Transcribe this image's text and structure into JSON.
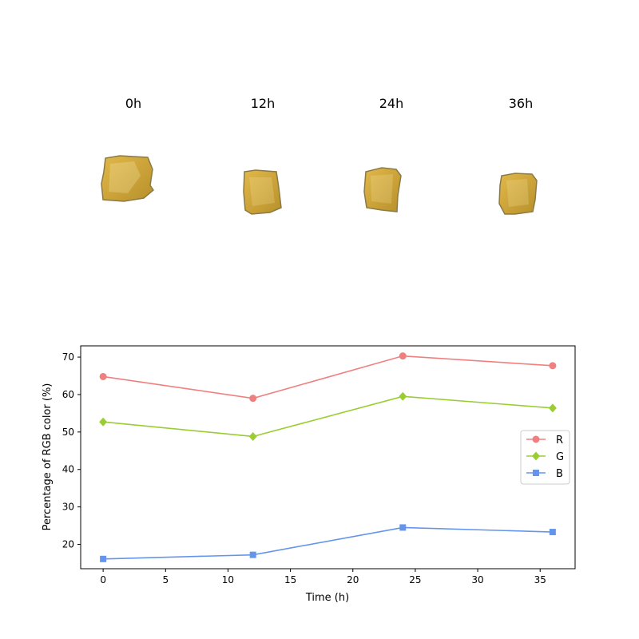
{
  "samples": [
    {
      "label": "0h"
    },
    {
      "label": "12h"
    },
    {
      "label": "24h"
    },
    {
      "label": "36h"
    }
  ],
  "sample_colors": {
    "fill_light": "#e0b84a",
    "fill_dark": "#b8902a",
    "edge": "#8c7a45"
  },
  "chart_data": {
    "type": "line",
    "xlabel": "Time (h)",
    "ylabel": "Percentage of RGB color (%)",
    "xlim": [
      -1.8,
      37.8
    ],
    "ylim": [
      13.5,
      73
    ],
    "xticks": [
      0,
      5,
      10,
      15,
      20,
      25,
      30,
      35
    ],
    "yticks": [
      20,
      30,
      40,
      50,
      60,
      70
    ],
    "x": [
      0,
      12,
      24,
      36
    ],
    "legend_position": "center-right",
    "grid": false,
    "series": [
      {
        "name": "R",
        "values": [
          64.8,
          59.0,
          70.3,
          67.7
        ],
        "color": "#f08080",
        "marker": "circle"
      },
      {
        "name": "G",
        "values": [
          52.7,
          48.8,
          59.5,
          56.4
        ],
        "color": "#9acd32",
        "marker": "diamond"
      },
      {
        "name": "B",
        "values": [
          16.1,
          17.2,
          24.5,
          23.3
        ],
        "color": "#6495ed",
        "marker": "square"
      }
    ]
  }
}
